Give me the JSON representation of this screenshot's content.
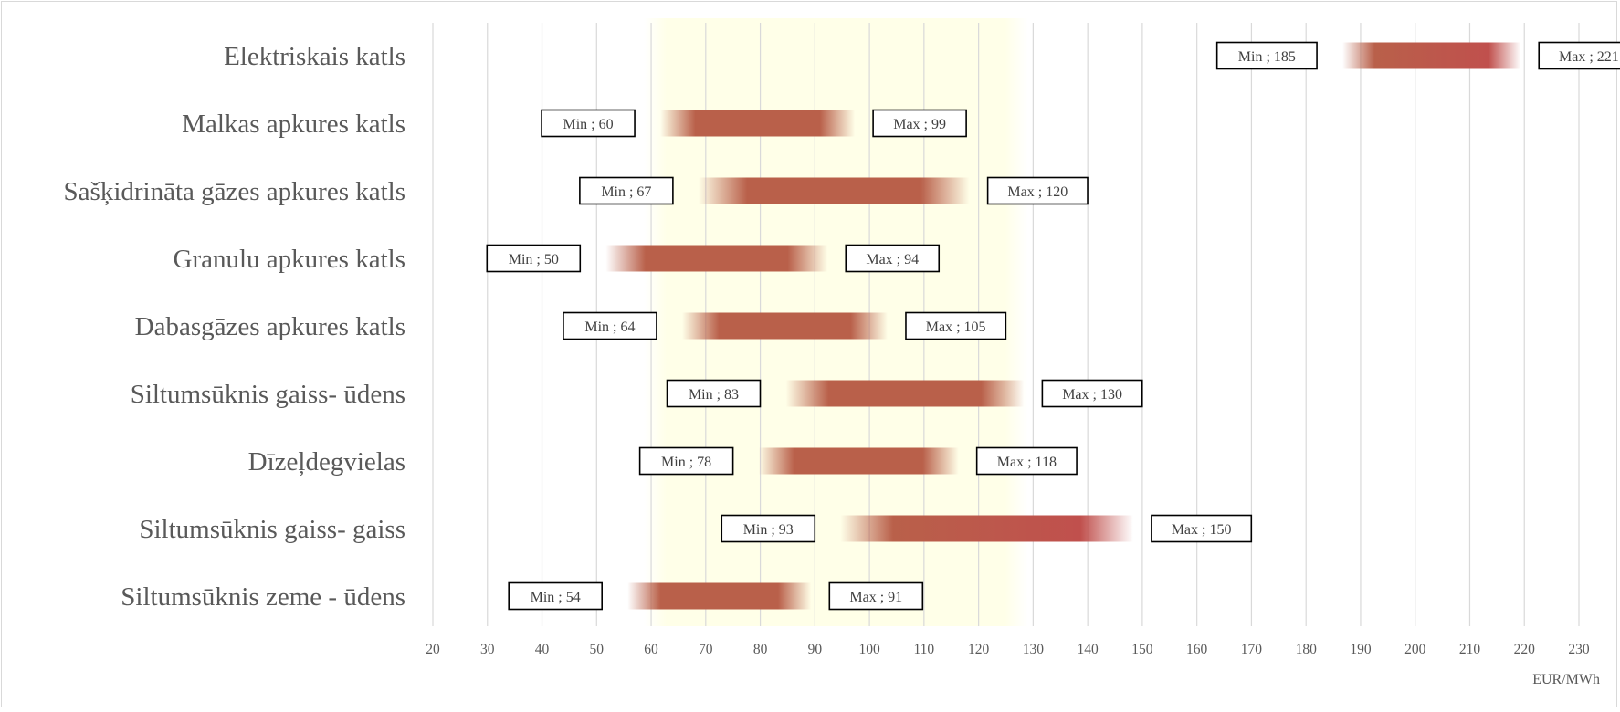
{
  "chart_data": {
    "type": "bar",
    "orientation": "horizontal-range",
    "categories": [
      "Elektriskais katls",
      "Malkas apkures katls",
      "Sašķidrināta gāzes apkures katls",
      "Granulu apkures katls",
      "Dabasgāzes apkures katls",
      "Siltumsūknis gaiss- ūdens",
      "Dīzeļdegvielas",
      "Siltumsūknis gaiss- gaiss",
      "Siltumsūknis zeme - ūdens"
    ],
    "series": [
      {
        "name": "Min",
        "values": [
          185,
          60,
          67,
          50,
          64,
          83,
          78,
          93,
          54
        ]
      },
      {
        "name": "Max",
        "values": [
          221,
          99,
          120,
          94,
          105,
          130,
          118,
          150,
          91
        ]
      }
    ],
    "data_label_min_prefix": "Min ;",
    "data_label_max_prefix": "Max ;",
    "xlim": [
      20,
      230
    ],
    "xticks": [
      20,
      30,
      40,
      50,
      60,
      70,
      80,
      90,
      100,
      110,
      120,
      130,
      140,
      150,
      160,
      170,
      180,
      190,
      200,
      210,
      220,
      230
    ],
    "xlabel": "EUR/MWh",
    "highlight_band": [
      60,
      130
    ],
    "grid": true,
    "colors": {
      "bar": "#b9604a",
      "bar_hot": "#c0504d",
      "band": "#ffffe8",
      "grid": "#d9d9d9",
      "text": "#595959"
    }
  }
}
